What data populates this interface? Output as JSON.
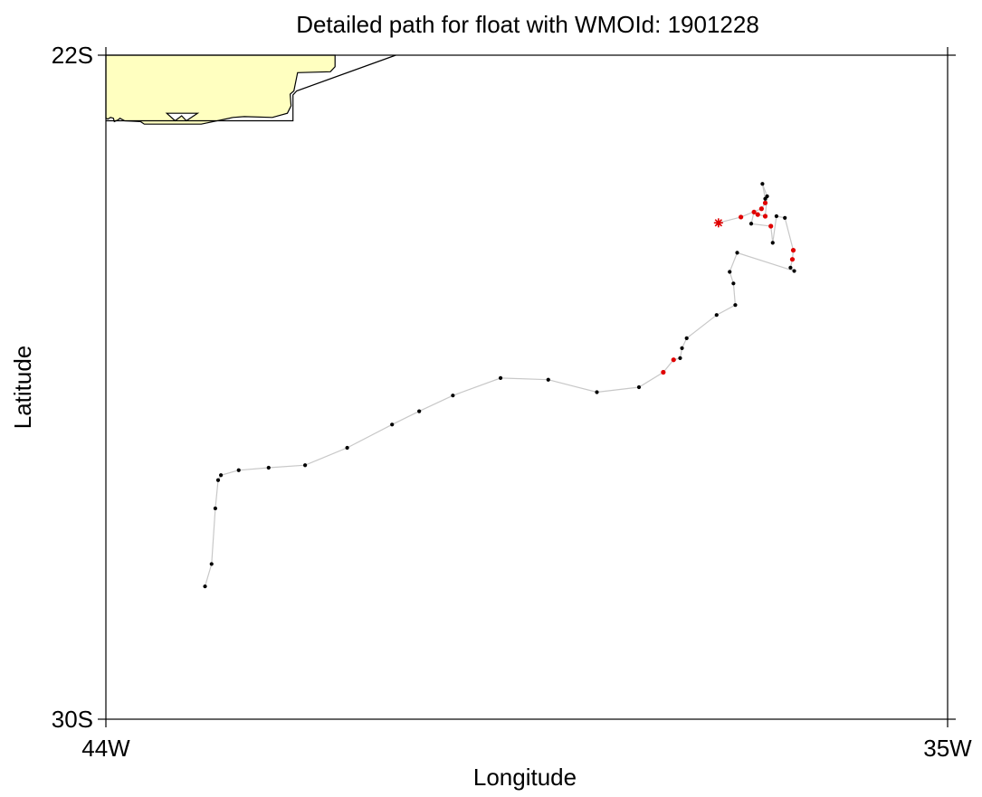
{
  "title": "Detailed path for float with WMOId: 1901228",
  "axes": {
    "xlabel": "Longitude",
    "ylabel": "Latitude",
    "x_ticks": [
      {
        "value": -44,
        "label": "44W"
      },
      {
        "value": -35,
        "label": "35W"
      }
    ],
    "y_ticks": [
      {
        "value": -22,
        "label": "22S"
      },
      {
        "value": -30,
        "label": "30S"
      }
    ]
  },
  "colors": {
    "land": "#ffffc0",
    "track": "#c8c8c8",
    "point": "#000000",
    "highlight": "#e00000"
  },
  "chart_data": {
    "type": "scatter",
    "title": "Detailed path for float with WMOId: 1901228",
    "xlabel": "Longitude",
    "ylabel": "Latitude",
    "xlim": [
      -44,
      -35
    ],
    "ylim": [
      -30,
      -22
    ],
    "grid": false,
    "deployment_marker": {
      "lon": -37.45,
      "lat": -24.02
    },
    "track": [
      {
        "lon": -37.45,
        "lat": -24.02,
        "flag": "red"
      },
      {
        "lon": -37.21,
        "lat": -23.95,
        "flag": "red"
      },
      {
        "lon": -36.99,
        "lat": -23.85,
        "flag": "red"
      },
      {
        "lon": -36.95,
        "lat": -23.78,
        "flag": "red"
      },
      {
        "lon": -36.95,
        "lat": -23.73,
        "flag": "black"
      },
      {
        "lon": -36.98,
        "lat": -23.55,
        "flag": "black"
      },
      {
        "lon": -36.93,
        "lat": -23.7,
        "flag": "black"
      },
      {
        "lon": -36.95,
        "lat": -23.94,
        "flag": "red"
      },
      {
        "lon": -37.03,
        "lat": -23.92,
        "flag": "red"
      },
      {
        "lon": -37.07,
        "lat": -23.89,
        "flag": "red"
      },
      {
        "lon": -37.1,
        "lat": -24.03,
        "flag": "black"
      },
      {
        "lon": -36.89,
        "lat": -24.06,
        "flag": "red"
      },
      {
        "lon": -36.87,
        "lat": -24.26,
        "flag": "black"
      },
      {
        "lon": -36.83,
        "lat": -23.94,
        "flag": "black"
      },
      {
        "lon": -36.74,
        "lat": -23.96,
        "flag": "black"
      },
      {
        "lon": -36.65,
        "lat": -24.35,
        "flag": "red"
      },
      {
        "lon": -36.66,
        "lat": -24.46,
        "flag": "red"
      },
      {
        "lon": -36.68,
        "lat": -24.56,
        "flag": "black"
      },
      {
        "lon": -36.64,
        "lat": -24.6,
        "flag": "black"
      },
      {
        "lon": -37.25,
        "lat": -24.38,
        "flag": "black"
      },
      {
        "lon": -37.33,
        "lat": -24.61,
        "flag": "black"
      },
      {
        "lon": -37.29,
        "lat": -24.75,
        "flag": "black"
      },
      {
        "lon": -37.27,
        "lat": -25.01,
        "flag": "black"
      },
      {
        "lon": -37.47,
        "lat": -25.13,
        "flag": "black"
      },
      {
        "lon": -37.79,
        "lat": -25.41,
        "flag": "black"
      },
      {
        "lon": -37.84,
        "lat": -25.53,
        "flag": "black"
      },
      {
        "lon": -37.86,
        "lat": -25.65,
        "flag": "black"
      },
      {
        "lon": -37.93,
        "lat": -25.67,
        "flag": "red"
      },
      {
        "lon": -38.04,
        "lat": -25.82,
        "flag": "red"
      },
      {
        "lon": -38.3,
        "lat": -26.0,
        "flag": "black"
      },
      {
        "lon": -38.75,
        "lat": -26.06,
        "flag": "black"
      },
      {
        "lon": -39.27,
        "lat": -25.91,
        "flag": "black"
      },
      {
        "lon": -39.78,
        "lat": -25.89,
        "flag": "black"
      },
      {
        "lon": -40.29,
        "lat": -26.1,
        "flag": "black"
      },
      {
        "lon": -40.65,
        "lat": -26.29,
        "flag": "black"
      },
      {
        "lon": -40.94,
        "lat": -26.45,
        "flag": "black"
      },
      {
        "lon": -41.42,
        "lat": -26.73,
        "flag": "black"
      },
      {
        "lon": -41.87,
        "lat": -26.94,
        "flag": "black"
      },
      {
        "lon": -42.26,
        "lat": -26.97,
        "flag": "black"
      },
      {
        "lon": -42.58,
        "lat": -27.0,
        "flag": "black"
      },
      {
        "lon": -42.77,
        "lat": -27.06,
        "flag": "black"
      },
      {
        "lon": -42.8,
        "lat": -27.12,
        "flag": "black"
      },
      {
        "lon": -42.83,
        "lat": -27.46,
        "flag": "black"
      },
      {
        "lon": -42.87,
        "lat": -28.13,
        "flag": "black"
      },
      {
        "lon": -42.94,
        "lat": -28.4,
        "flag": "black"
      }
    ]
  },
  "land": {
    "coast": [
      [
        -44.0,
        -22.0
      ],
      [
        -41.55,
        -22.0
      ],
      [
        -41.55,
        -22.14
      ],
      [
        -41.6,
        -22.2
      ],
      [
        -41.95,
        -22.21
      ],
      [
        -41.99,
        -22.43
      ],
      [
        -42.03,
        -22.47
      ],
      [
        -42.02,
        -22.61
      ],
      [
        -42.06,
        -22.7
      ],
      [
        -42.22,
        -22.75
      ],
      [
        -42.52,
        -22.74
      ],
      [
        -42.64,
        -22.75
      ],
      [
        -42.98,
        -22.83
      ],
      [
        -43.59,
        -22.83
      ],
      [
        -43.63,
        -22.8
      ],
      [
        -43.8,
        -22.79
      ],
      [
        -43.85,
        -22.76
      ],
      [
        -43.87,
        -22.78
      ],
      [
        -43.91,
        -22.8
      ],
      [
        -43.92,
        -22.76
      ],
      [
        -43.95,
        -22.75
      ],
      [
        -43.98,
        -22.77
      ],
      [
        -44.0,
        -22.76
      ]
    ],
    "island": [
      [
        -43.35,
        -22.7
      ],
      [
        -43.26,
        -22.79
      ],
      [
        -43.19,
        -22.73
      ],
      [
        -43.14,
        -22.79
      ],
      [
        -43.02,
        -22.7
      ]
    ],
    "boundary": [
      [
        -44.0,
        -22.79
      ],
      [
        -42.0,
        -22.79
      ],
      [
        -42.0,
        -22.48
      ],
      [
        -41.96,
        -22.43
      ],
      [
        -40.9,
        -22.0
      ]
    ]
  }
}
